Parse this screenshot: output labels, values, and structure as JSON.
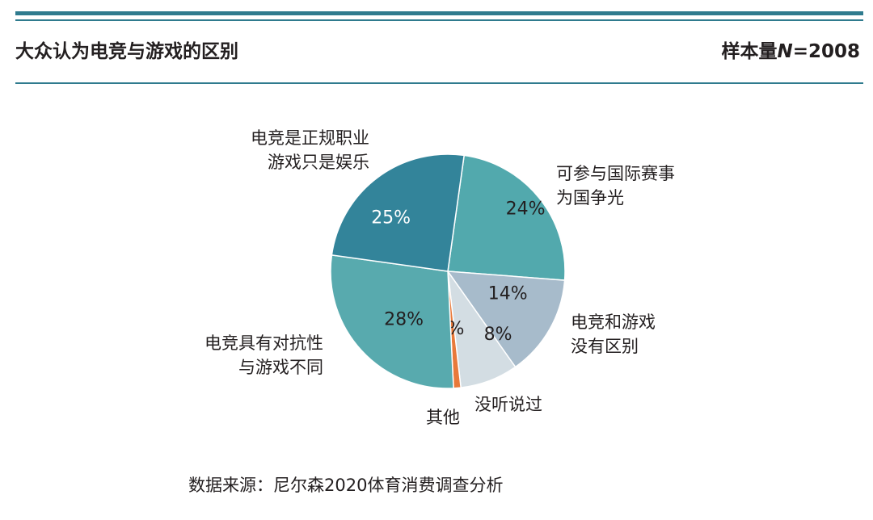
{
  "header": {
    "title": "大众认为电竞与游戏的区别",
    "sample_prefix": "样本量",
    "sample_n": "N",
    "sample_suffix": "=2008"
  },
  "footer": {
    "source": "数据来源：尼尔森2020体育消费调查分析"
  },
  "colors": {
    "rule": "#2f7b8e"
  },
  "chart_data": {
    "type": "pie",
    "title": "大众认为电竞与游戏的区别",
    "slices": [
      {
        "label_lines": [
          "可参与国际赛事",
          "为国争光"
        ],
        "value": 24,
        "pct_label": "24%",
        "color": "#52a9ad"
      },
      {
        "label_lines": [
          "电竞和游戏",
          "没有区别"
        ],
        "value": 14,
        "pct_label": "14%",
        "color": "#a7bbcb"
      },
      {
        "label_lines": [
          "没听说过"
        ],
        "value": 8,
        "pct_label": "8%",
        "color": "#d3dde3"
      },
      {
        "label_lines": [
          "其他"
        ],
        "value": 1,
        "pct_label": "1%",
        "color": "#e8793a"
      },
      {
        "label_lines": [
          "电竞具有对抗性",
          "与游戏不同"
        ],
        "value": 28,
        "pct_label": "28%",
        "color": "#58aaae"
      },
      {
        "label_lines": [
          "电竞是正规职业",
          "游戏只是娱乐"
        ],
        "value": 25,
        "pct_label": "25%",
        "color": "#33849a"
      }
    ]
  }
}
